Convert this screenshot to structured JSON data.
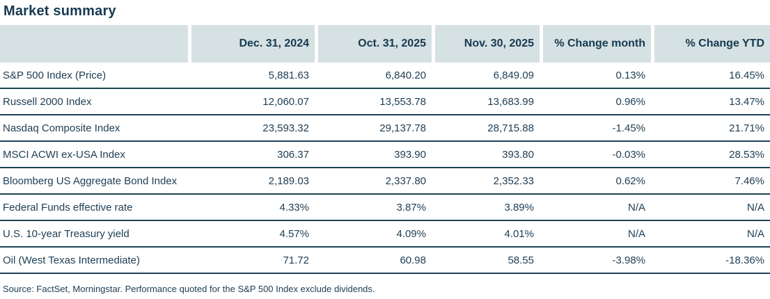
{
  "page_title": "Market summary",
  "colors": {
    "header_bg": "#d5e1e2",
    "text_navy": "#1d3d54",
    "separator": "#1c4254",
    "background": "#ffffff"
  },
  "chart_data": {
    "type": "table",
    "title": "Market summary",
    "columns": [
      "",
      "Dec. 31, 2024",
      "Oct. 31, 2025",
      "Nov. 30, 2025",
      "% Change month",
      "% Change YTD"
    ],
    "rows": [
      {
        "label": "S&P 500 Index (Price)",
        "values": [
          "5,881.63",
          "6,840.20",
          "6,849.09",
          "0.13%",
          "16.45%"
        ]
      },
      {
        "label": "Russell 2000 Index",
        "values": [
          "12,060.07",
          "13,553.78",
          "13,683.99",
          "0.96%",
          "13.47%"
        ]
      },
      {
        "label": "Nasdaq Composite Index",
        "values": [
          "23,593.32",
          "29,137.78",
          "28,715.88",
          "-1.45%",
          "21.71%"
        ]
      },
      {
        "label": "MSCI ACWI ex-USA Index",
        "values": [
          "306.37",
          "393.90",
          "393.80",
          "-0.03%",
          "28.53%"
        ]
      },
      {
        "label": "Bloomberg US Aggregate Bond Index",
        "values": [
          "2,189.03",
          "2,337.80",
          "2,352.33",
          "0.62%",
          "7.46%"
        ]
      },
      {
        "label": "Federal Funds effective rate",
        "values": [
          "4.33%",
          "3.87%",
          "3.89%",
          "N/A",
          "N/A"
        ]
      },
      {
        "label": "U.S. 10-year Treasury yield",
        "values": [
          "4.57%",
          "4.09%",
          "4.01%",
          "N/A",
          "N/A"
        ]
      },
      {
        "label": "Oil (West Texas Intermediate)",
        "values": [
          "71.72",
          "60.98",
          "58.55",
          "-3.98%",
          "-18.36%"
        ]
      }
    ],
    "source_note": "Source: FactSet, Morningstar. Performance quoted for the S&P 500 Index exclude dividends."
  }
}
